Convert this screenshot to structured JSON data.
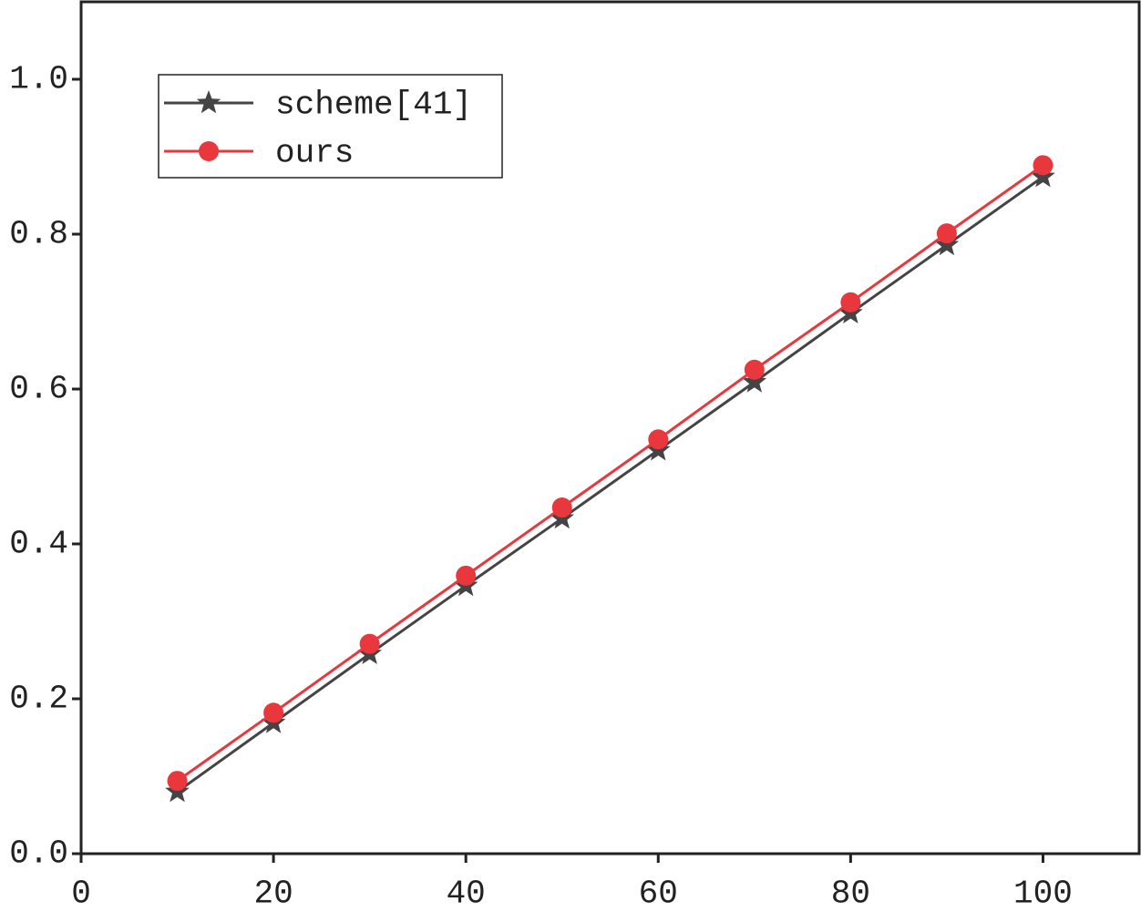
{
  "chart_data": {
    "type": "line",
    "x": [
      10,
      20,
      30,
      40,
      50,
      60,
      70,
      80,
      90,
      100
    ],
    "series": [
      {
        "name": "scheme[41]",
        "color": "#444444",
        "marker": "star",
        "values": [
          0.08,
          0.169,
          0.258,
          0.346,
          0.433,
          0.521,
          0.609,
          0.698,
          0.786,
          0.874
        ]
      },
      {
        "name": "ours",
        "color": "#e8383d",
        "marker": "circle",
        "values": [
          0.094,
          0.182,
          0.271,
          0.359,
          0.447,
          0.535,
          0.625,
          0.712,
          0.801,
          0.889
        ]
      }
    ],
    "xlim": [
      0,
      110
    ],
    "xticks": [
      0,
      20,
      40,
      60,
      80,
      100
    ],
    "ylim": [
      0,
      1.1
    ],
    "yticks": [
      {
        "value": 0,
        "label": "0.0"
      },
      0.2,
      0.4,
      0.6,
      0.8,
      {
        "value": 1,
        "label": "1.0"
      }
    ],
    "grid": false,
    "legend": "upper left"
  }
}
